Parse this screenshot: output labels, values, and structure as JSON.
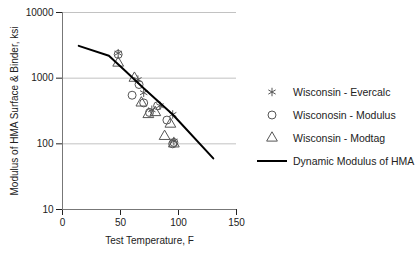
{
  "chart_data": {
    "type": "scatter",
    "xlabel": "Test Temperature, F",
    "ylabel": "Modulus of HMA Surface & Binder, ksi",
    "xlim": [
      0,
      150
    ],
    "xticks": [
      0,
      50,
      100,
      150
    ],
    "ylim": [
      10,
      10000
    ],
    "yticks": [
      10,
      100,
      1000,
      10000
    ],
    "log": "y",
    "grid": true,
    "legend": "right",
    "series": [
      {
        "name": "Wisconsin - Evercalc",
        "type": "scatter",
        "marker": "asterisk",
        "color": "#555555",
        "x": [
          48,
          65,
          70,
          77,
          84,
          95,
          96
        ],
        "values": [
          2400,
          950,
          600,
          330,
          380,
          280,
          110
        ]
      },
      {
        "name": "Wisconosin - Modulus",
        "type": "scatter",
        "marker": "circle",
        "color": "#555555",
        "x": [
          48,
          60,
          66,
          70,
          75,
          82,
          90,
          95,
          96
        ],
        "values": [
          2300,
          550,
          800,
          420,
          300,
          380,
          230,
          100,
          105
        ]
      },
      {
        "name": "Wisconsin - Modtag",
        "type": "scatter",
        "marker": "triangle",
        "color": "#555555",
        "x": [
          48,
          62,
          68,
          74,
          80,
          88,
          93,
          96
        ],
        "values": [
          1700,
          1000,
          420,
          280,
          300,
          130,
          200,
          100
        ]
      },
      {
        "name": "Dynamic Modulus of HMA",
        "type": "line",
        "line_style": "solid",
        "color": "#000000",
        "x": [
          14,
          40,
          54,
          70,
          95,
          130
        ],
        "values": [
          3100,
          2200,
          1300,
          700,
          280,
          60
        ]
      }
    ]
  }
}
